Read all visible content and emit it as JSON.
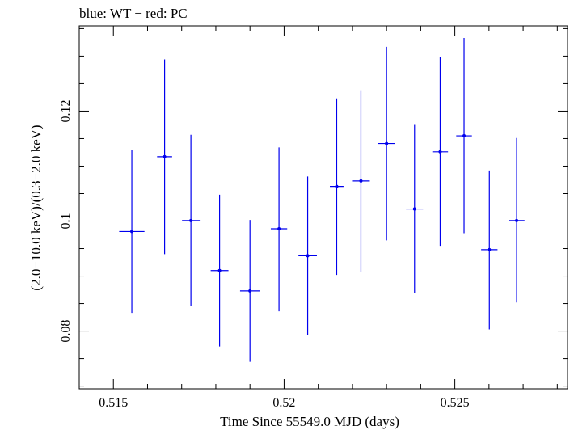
{
  "chart_data": {
    "type": "scatter",
    "title": "blue: WT − red: PC",
    "xlabel": "Time Since 55549.0 MJD (days)",
    "ylabel": "(2.0−10.0 keV)/(0.3−2.0 keV)",
    "xlim": [
      0.514,
      0.5283
    ],
    "ylim": [
      0.0695,
      0.1355
    ],
    "xticks": [
      0.515,
      0.52,
      0.525
    ],
    "xtick_labels": [
      "0.515",
      "0.52",
      "0.525"
    ],
    "yticks": [
      0.08,
      0.1,
      0.12
    ],
    "ytick_labels": [
      "0.08",
      "0.1",
      "0.12"
    ],
    "grid": false,
    "series": [
      {
        "color": "#0000ee",
        "points": [
          {
            "x": 0.51554,
            "y": 0.0981,
            "xerr": 0.00037,
            "ylo": 0.0833,
            "yhi": 0.1129
          },
          {
            "x": 0.5165,
            "y": 0.1117,
            "xerr": 0.00022,
            "ylo": 0.094,
            "yhi": 0.1294
          },
          {
            "x": 0.51727,
            "y": 0.1001,
            "xerr": 0.00026,
            "ylo": 0.0845,
            "yhi": 0.1157
          },
          {
            "x": 0.51811,
            "y": 0.091,
            "xerr": 0.00026,
            "ylo": 0.0772,
            "yhi": 0.1048
          },
          {
            "x": 0.519,
            "y": 0.0873,
            "xerr": 0.00029,
            "ylo": 0.0744,
            "yhi": 0.1002
          },
          {
            "x": 0.51985,
            "y": 0.0986,
            "xerr": 0.00024,
            "ylo": 0.0836,
            "yhi": 0.1134
          },
          {
            "x": 0.52069,
            "y": 0.0937,
            "xerr": 0.00027,
            "ylo": 0.0792,
            "yhi": 0.1081
          },
          {
            "x": 0.52154,
            "y": 0.1063,
            "xerr": 0.0002,
            "ylo": 0.0902,
            "yhi": 0.1223
          },
          {
            "x": 0.52225,
            "y": 0.1073,
            "xerr": 0.00026,
            "ylo": 0.0908,
            "yhi": 0.1238
          },
          {
            "x": 0.523,
            "y": 0.1141,
            "xerr": 0.00024,
            "ylo": 0.0965,
            "yhi": 0.1317
          },
          {
            "x": 0.52382,
            "y": 0.1022,
            "xerr": 0.00025,
            "ylo": 0.087,
            "yhi": 0.1175
          },
          {
            "x": 0.52457,
            "y": 0.1126,
            "xerr": 0.00023,
            "ylo": 0.0955,
            "yhi": 0.1298
          },
          {
            "x": 0.52527,
            "y": 0.1155,
            "xerr": 0.00023,
            "ylo": 0.0978,
            "yhi": 0.1333
          },
          {
            "x": 0.52601,
            "y": 0.0948,
            "xerr": 0.00024,
            "ylo": 0.0803,
            "yhi": 0.1092
          },
          {
            "x": 0.52681,
            "y": 0.1001,
            "xerr": 0.00023,
            "ylo": 0.0852,
            "yhi": 0.1151
          }
        ]
      }
    ]
  }
}
